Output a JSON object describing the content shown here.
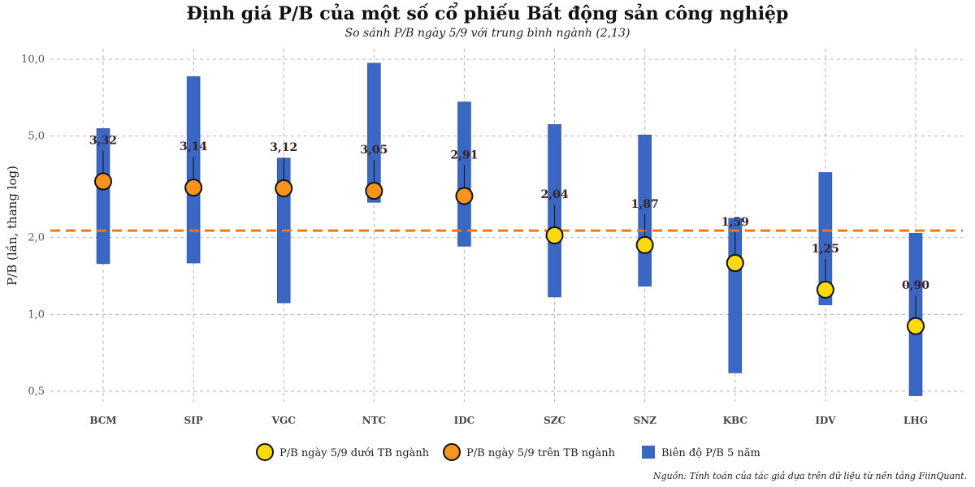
{
  "chart_data": {
    "type": "range-dot",
    "title": "Định giá P/B của một số cổ phiếu Bất động sản công nghiệp",
    "subtitle": "So sánh P/B ngày 5/9 với trung bình ngành (2,13)",
    "ylabel": "P/B (lần, thang log)",
    "yscale": "log",
    "ylim": [
      0.45,
      11.5
    ],
    "yticks": [
      0.5,
      1.0,
      2.0,
      5.0,
      10.0
    ],
    "ytick_labels": [
      "0,5",
      "1,0",
      "2,0",
      "5,0",
      "10,0"
    ],
    "reference_line": {
      "value": 2.13,
      "color": "#f07818",
      "style": "dashed"
    },
    "categories": [
      "BCM",
      "SIP",
      "VGC",
      "NTC",
      "IDC",
      "SZC",
      "SNZ",
      "KBC",
      "IDV",
      "LHG"
    ],
    "range_low": [
      1.58,
      1.59,
      1.11,
      2.75,
      1.85,
      1.17,
      1.29,
      0.59,
      1.09,
      0.48
    ],
    "range_high": [
      5.35,
      8.55,
      4.1,
      9.65,
      6.8,
      5.55,
      5.05,
      2.38,
      3.6,
      2.08
    ],
    "current": [
      3.32,
      3.14,
      3.12,
      3.05,
      2.91,
      2.04,
      1.87,
      1.59,
      1.25,
      0.9
    ],
    "current_labels": [
      "3,32",
      "3,14",
      "3,12",
      "3,05",
      "2,91",
      "2,04",
      "1,87",
      "1,59",
      "1,25",
      "0,90"
    ],
    "legend": [
      {
        "label": "P/B ngày 5/9 dưới TB ngành",
        "color": "#fdd90f",
        "kind": "dot-below"
      },
      {
        "label": "P/B ngày 5/9 trên TB ngành",
        "color": "#f7941d",
        "kind": "dot-above"
      },
      {
        "label": "Biên độ P/B 5 năm",
        "color": "#3a66c4",
        "kind": "bar"
      }
    ],
    "colors": {
      "bar": "#3a66c4",
      "dot_below": "#fdd90f",
      "dot_above": "#f7941d"
    },
    "grid": true,
    "legend_position": "bottom"
  },
  "source_note": "Nguồn: Tính toán của tác giả dựa trên dữ liệu từ nền tảng FiinQuant."
}
